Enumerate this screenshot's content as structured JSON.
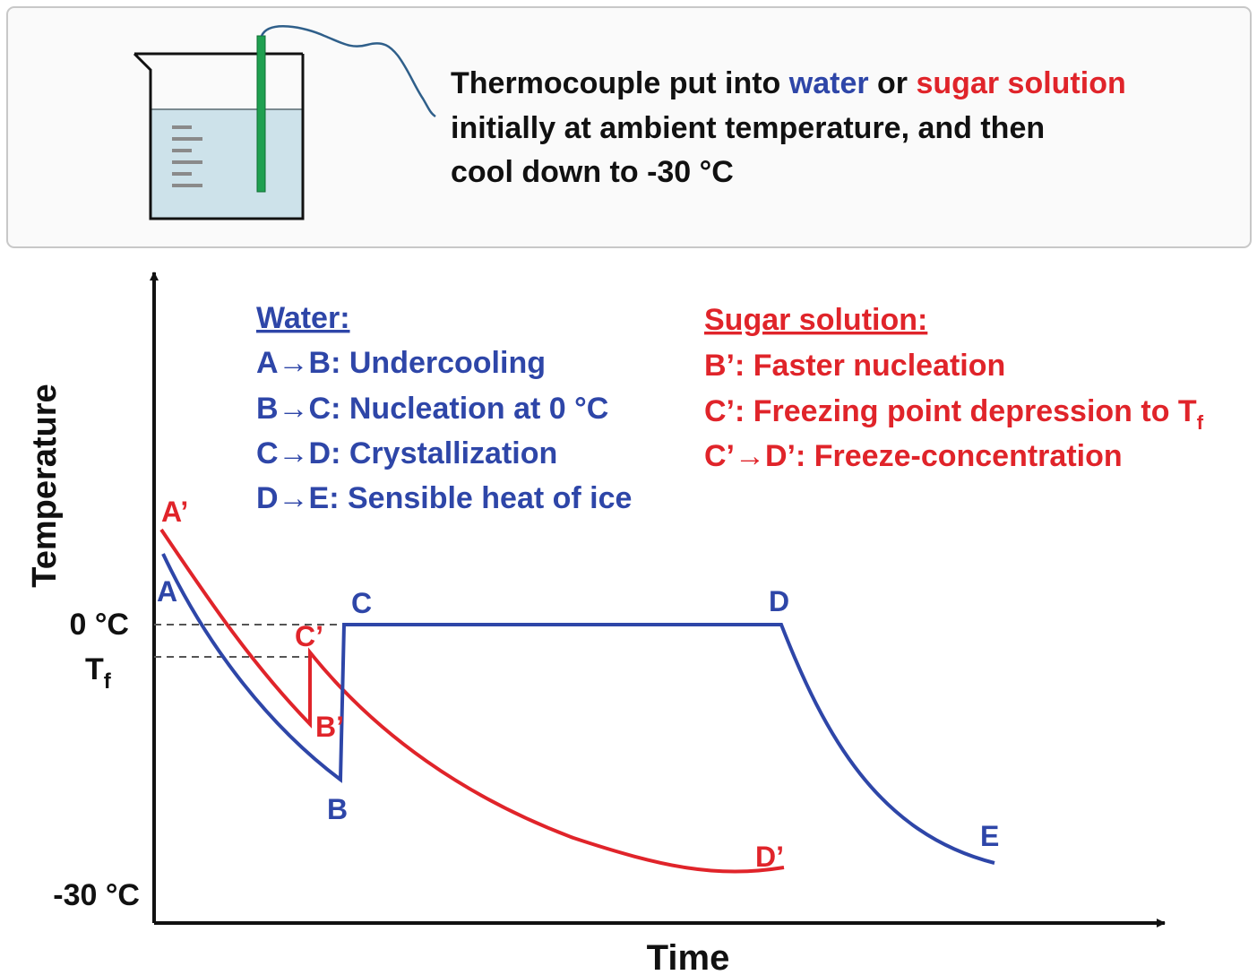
{
  "colors": {
    "water": "#2e46a8",
    "sugar": "#e0242a",
    "text": "#111111",
    "thermocouple": "#1fa050",
    "liquid": "#cde2ea",
    "box_border": "#c8c8c8",
    "dashed": "#555555"
  },
  "header": {
    "line1_prefix": "Thermocouple put into ",
    "line1_water": "water",
    "line1_or": " or ",
    "line1_sugar": "sugar solution",
    "line2": "initially at ambient temperature, and then",
    "line3": "cool down to -30 °C",
    "beaker_icon": "beaker-icon",
    "thermocouple_icon": "thermocouple-probe-icon"
  },
  "axes": {
    "ylabel": "Temperature",
    "xlabel": "Time",
    "tick_zero": "0 °C",
    "tick_tf_main": "T",
    "tick_tf_sub": "f",
    "tick_min": "-30 °C"
  },
  "legend_water": {
    "heading": "Water:",
    "lines": [
      "A→B: Undercooling",
      "B→C: Nucleation at 0 °C",
      "C→D: Crystallization",
      "D→E: Sensible heat of ice"
    ]
  },
  "legend_sugar": {
    "heading": "Sugar solution:",
    "line1": "B’: Faster nucleation",
    "line2_main": "C’: Freezing point depression to T",
    "line2_sub": "f",
    "line3": "C’→D’: Freeze-concentration"
  },
  "point_labels": {
    "A": "A",
    "B": "B",
    "C": "C",
    "D": "D",
    "E": "E",
    "A_prime": "A’",
    "B_prime": "B’",
    "C_prime": "C’",
    "D_prime": "D’"
  }
}
